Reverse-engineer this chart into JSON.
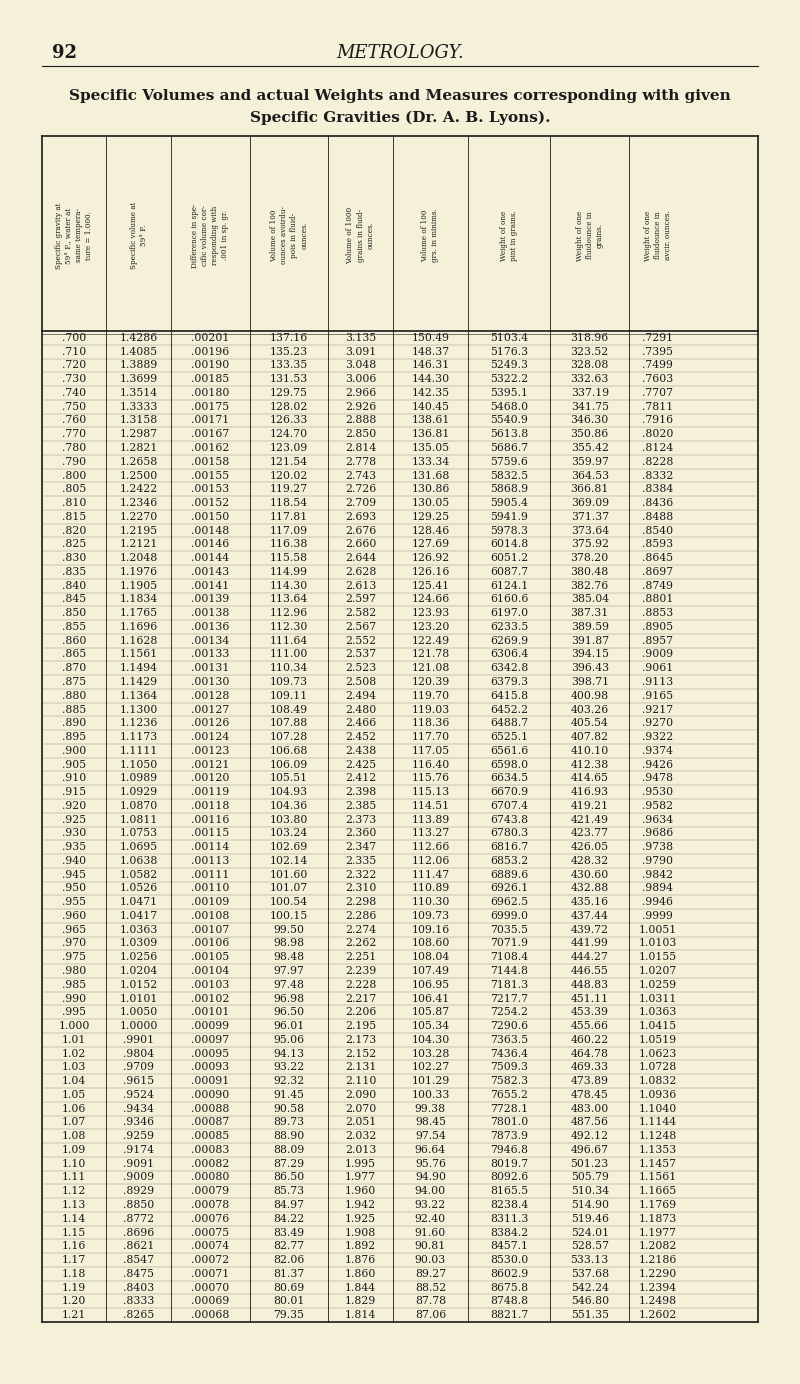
{
  "page_number": "92",
  "page_title": "METROLOGY.",
  "table_title": "Specific Volumes and actual Weights and Measures corresponding with given",
  "table_subtitle": "Specific Gravities (Dr. A. B. Lyons).",
  "col_headers": [
    "Specific gravity at\n59° F., water at\nsame tempera-\nture = 1.000.",
    "Specific volume at\n59° F.",
    "Difference in spe-\ncific volume cor-\nresponding with\n.001 in sp. gr.",
    "Volume of 100\nounces avoirdu-\npois in fluid-\nounces.",
    "Volume of 1000\ngrains in fluid-\nounces.",
    "Volume of 100\ngrs. in minims.",
    "Weight of one\npint in grains.",
    "Weight of one\nfluidounce in\ngrains.",
    "Weight of one\nfluidounce in\navcir. ounces."
  ],
  "rows": [
    [
      ".700",
      "1.4286",
      ".00201",
      "137.16",
      "3.135",
      "150.49",
      "5103.4",
      "318.96",
      ".7291"
    ],
    [
      ".710",
      "1.4085",
      ".00196",
      "135.23",
      "3.091",
      "148.37",
      "5176.3",
      "323.52",
      ".7395"
    ],
    [
      ".720",
      "1.3889",
      ".00190",
      "133.35",
      "3.048",
      "146.31",
      "5249.3",
      "328.08",
      ".7499"
    ],
    [
      ".730",
      "1.3699",
      ".00185",
      "131.53",
      "3.006",
      "144.30",
      "5322.2",
      "332.63",
      ".7603"
    ],
    [
      ".740",
      "1.3514",
      ".00180",
      "129.75",
      "2.966",
      "142.35",
      "5395.1",
      "337.19",
      ".7707"
    ],
    [
      ".750",
      "1.3333",
      ".00175",
      "128.02",
      "2.926",
      "140.45",
      "5468.0",
      "341.75",
      ".7811"
    ],
    [
      ".760",
      "1.3158",
      ".00171",
      "126.33",
      "2.888",
      "138.61",
      "5540.9",
      "346.30",
      ".7916"
    ],
    [
      ".770",
      "1.2987",
      ".00167",
      "124.70",
      "2.850",
      "136.81",
      "5613.8",
      "350.86",
      ".8020"
    ],
    [
      ".780",
      "1.2821",
      ".00162",
      "123.09",
      "2.814",
      "135.05",
      "5686.7",
      "355.42",
      ".8124"
    ],
    [
      ".790",
      "1.2658",
      ".00158",
      "121.54",
      "2.778",
      "133.34",
      "5759.6",
      "359.97",
      ".8228"
    ],
    [
      ".800",
      "1.2500",
      ".00155",
      "120.02",
      "2.743",
      "131.68",
      "5832.5",
      "364.53",
      ".8332"
    ],
    [
      ".805",
      "1.2422",
      ".00153",
      "119.27",
      "2.726",
      "130.86",
      "5868.9",
      "366.81",
      ".8384"
    ],
    [
      ".810",
      "1.2346",
      ".00152",
      "118.54",
      "2.709",
      "130.05",
      "5905.4",
      "369.09",
      ".8436"
    ],
    [
      ".815",
      "1.2270",
      ".00150",
      "117.81",
      "2.693",
      "129.25",
      "5941.9",
      "371.37",
      ".8488"
    ],
    [
      ".820",
      "1.2195",
      ".00148",
      "117.09",
      "2.676",
      "128.46",
      "5978.3",
      "373.64",
      ".8540"
    ],
    [
      ".825",
      "1.2121",
      ".00146",
      "116.38",
      "2.660",
      "127.69",
      "6014.8",
      "375.92",
      ".8593"
    ],
    [
      ".830",
      "1.2048",
      ".00144",
      "115.58",
      "2.644",
      "126.92",
      "6051.2",
      "378.20",
      ".8645"
    ],
    [
      ".835",
      "1.1976",
      ".00143",
      "114.99",
      "2.628",
      "126.16",
      "6087.7",
      "380.48",
      ".8697"
    ],
    [
      ".840",
      "1.1905",
      ".00141",
      "114.30",
      "2.613",
      "125.41",
      "6124.1",
      "382.76",
      ".8749"
    ],
    [
      ".845",
      "1.1834",
      ".00139",
      "113.64",
      "2.597",
      "124.66",
      "6160.6",
      "385.04",
      ".8801"
    ],
    [
      ".850",
      "1.1765",
      ".00138",
      "112.96",
      "2.582",
      "123.93",
      "6197.0",
      "387.31",
      ".8853"
    ],
    [
      ".855",
      "1.1696",
      ".00136",
      "112.30",
      "2.567",
      "123.20",
      "6233.5",
      "389.59",
      ".8905"
    ],
    [
      ".860",
      "1.1628",
      ".00134",
      "111.64",
      "2.552",
      "122.49",
      "6269.9",
      "391.87",
      ".8957"
    ],
    [
      ".865",
      "1.1561",
      ".00133",
      "111.00",
      "2.537",
      "121.78",
      "6306.4",
      "394.15",
      ".9009"
    ],
    [
      ".870",
      "1.1494",
      ".00131",
      "110.34",
      "2.523",
      "121.08",
      "6342.8",
      "396.43",
      ".9061"
    ],
    [
      ".875",
      "1.1429",
      ".00130",
      "109.73",
      "2.508",
      "120.39",
      "6379.3",
      "398.71",
      ".9113"
    ],
    [
      ".880",
      "1.1364",
      ".00128",
      "109.11",
      "2.494",
      "119.70",
      "6415.8",
      "400.98",
      ".9165"
    ],
    [
      ".885",
      "1.1300",
      ".00127",
      "108.49",
      "2.480",
      "119.03",
      "6452.2",
      "403.26",
      ".9217"
    ],
    [
      ".890",
      "1.1236",
      ".00126",
      "107.88",
      "2.466",
      "118.36",
      "6488.7",
      "405.54",
      ".9270"
    ],
    [
      ".895",
      "1.1173",
      ".00124",
      "107.28",
      "2.452",
      "117.70",
      "6525.1",
      "407.82",
      ".9322"
    ],
    [
      ".900",
      "1.1111",
      ".00123",
      "106.68",
      "2.438",
      "117.05",
      "6561.6",
      "410.10",
      ".9374"
    ],
    [
      ".905",
      "1.1050",
      ".00121",
      "106.09",
      "2.425",
      "116.40",
      "6598.0",
      "412.38",
      ".9426"
    ],
    [
      ".910",
      "1.0989",
      ".00120",
      "105.51",
      "2.412",
      "115.76",
      "6634.5",
      "414.65",
      ".9478"
    ],
    [
      ".915",
      "1.0929",
      ".00119",
      "104.93",
      "2.398",
      "115.13",
      "6670.9",
      "416.93",
      ".9530"
    ],
    [
      ".920",
      "1.0870",
      ".00118",
      "104.36",
      "2.385",
      "114.51",
      "6707.4",
      "419.21",
      ".9582"
    ],
    [
      ".925",
      "1.0811",
      ".00116",
      "103.80",
      "2.373",
      "113.89",
      "6743.8",
      "421.49",
      ".9634"
    ],
    [
      ".930",
      "1.0753",
      ".00115",
      "103.24",
      "2.360",
      "113.27",
      "6780.3",
      "423.77",
      ".9686"
    ],
    [
      ".935",
      "1.0695",
      ".00114",
      "102.69",
      "2.347",
      "112.66",
      "6816.7",
      "426.05",
      ".9738"
    ],
    [
      ".940",
      "1.0638",
      ".00113",
      "102.14",
      "2.335",
      "112.06",
      "6853.2",
      "428.32",
      ".9790"
    ],
    [
      ".945",
      "1.0582",
      ".00111",
      "101.60",
      "2.322",
      "111.47",
      "6889.6",
      "430.60",
      ".9842"
    ],
    [
      ".950",
      "1.0526",
      ".00110",
      "101.07",
      "2.310",
      "110.89",
      "6926.1",
      "432.88",
      ".9894"
    ],
    [
      ".955",
      "1.0471",
      ".00109",
      "100.54",
      "2.298",
      "110.30",
      "6962.5",
      "435.16",
      ".9946"
    ],
    [
      ".960",
      "1.0417",
      ".00108",
      "100.15",
      "2.286",
      "109.73",
      "6999.0",
      "437.44",
      ".9999"
    ],
    [
      ".965",
      "1.0363",
      ".00107",
      "99.50",
      "2.274",
      "109.16",
      "7035.5",
      "439.72",
      "1.0051"
    ],
    [
      ".970",
      "1.0309",
      ".00106",
      "98.98",
      "2.262",
      "108.60",
      "7071.9",
      "441.99",
      "1.0103"
    ],
    [
      ".975",
      "1.0256",
      ".00105",
      "98.48",
      "2.251",
      "108.04",
      "7108.4",
      "444.27",
      "1.0155"
    ],
    [
      ".980",
      "1.0204",
      ".00104",
      "97.97",
      "2.239",
      "107.49",
      "7144.8",
      "446.55",
      "1.0207"
    ],
    [
      ".985",
      "1.0152",
      ".00103",
      "97.48",
      "2.228",
      "106.95",
      "7181.3",
      "448.83",
      "1.0259"
    ],
    [
      ".990",
      "1.0101",
      ".00102",
      "96.98",
      "2.217",
      "106.41",
      "7217.7",
      "451.11",
      "1.0311"
    ],
    [
      ".995",
      "1.0050",
      ".00101",
      "96.50",
      "2.206",
      "105.87",
      "7254.2",
      "453.39",
      "1.0363"
    ],
    [
      "1.000",
      "1.0000",
      ".00099",
      "96.01",
      "2.195",
      "105.34",
      "7290.6",
      "455.66",
      "1.0415"
    ],
    [
      "1.01",
      ".9901",
      ".00097",
      "95.06",
      "2.173",
      "104.30",
      "7363.5",
      "460.22",
      "1.0519"
    ],
    [
      "1.02",
      ".9804",
      ".00095",
      "94.13",
      "2.152",
      "103.28",
      "7436.4",
      "464.78",
      "1.0623"
    ],
    [
      "1.03",
      ".9709",
      ".00093",
      "93.22",
      "2.131",
      "102.27",
      "7509.3",
      "469.33",
      "1.0728"
    ],
    [
      "1.04",
      ".9615",
      ".00091",
      "92.32",
      "2.110",
      "101.29",
      "7582.3",
      "473.89",
      "1.0832"
    ],
    [
      "1.05",
      ".9524",
      ".00090",
      "91.45",
      "2.090",
      "100.33",
      "7655.2",
      "478.45",
      "1.0936"
    ],
    [
      "1.06",
      ".9434",
      ".00088",
      "90.58",
      "2.070",
      "99.38",
      "7728.1",
      "483.00",
      "1.1040"
    ],
    [
      "1.07",
      ".9346",
      ".00087",
      "89.73",
      "2.051",
      "98.45",
      "7801.0",
      "487.56",
      "1.1144"
    ],
    [
      "1.08",
      ".9259",
      ".00085",
      "88.90",
      "2.032",
      "97.54",
      "7873.9",
      "492.12",
      "1.1248"
    ],
    [
      "1.09",
      ".9174",
      ".00083",
      "88.09",
      "2.013",
      "96.64",
      "7946.8",
      "496.67",
      "1.1353"
    ],
    [
      "1.10",
      ".9091",
      ".00082",
      "87.29",
      "1.995",
      "95.76",
      "8019.7",
      "501.23",
      "1.1457"
    ],
    [
      "1.11",
      ".9009",
      ".00080",
      "86.50",
      "1.977",
      "94.90",
      "8092.6",
      "505.79",
      "1.1561"
    ],
    [
      "1.12",
      ".8929",
      ".00079",
      "85.73",
      "1.960",
      "94.00",
      "8165.5",
      "510.34",
      "1.1665"
    ],
    [
      "1.13",
      ".8850",
      ".00078",
      "84.97",
      "1.942",
      "93.22",
      "8238.4",
      "514.90",
      "1.1769"
    ],
    [
      "1.14",
      ".8772",
      ".00076",
      "84.22",
      "1.925",
      "92.40",
      "8311.3",
      "519.46",
      "1.1873"
    ],
    [
      "1.15",
      ".8696",
      ".00075",
      "83.49",
      "1.908",
      "91.60",
      "8384.2",
      "524.01",
      "1.1977"
    ],
    [
      "1.16",
      ".8621",
      ".00074",
      "82.77",
      "1.892",
      "90.81",
      "8457.1",
      "528.57",
      "1.2082"
    ],
    [
      "1.17",
      ".8547",
      ".00072",
      "82.06",
      "1.876",
      "90.03",
      "8530.0",
      "533.13",
      "1.2186"
    ],
    [
      "1.18",
      ".8475",
      ".00071",
      "81.37",
      "1.860",
      "89.27",
      "8602.9",
      "537.68",
      "1.2290"
    ],
    [
      "1.19",
      ".8403",
      ".00070",
      "80.69",
      "1.844",
      "88.52",
      "8675.8",
      "542.24",
      "1.2394"
    ],
    [
      "1.20",
      ".8333",
      ".00069",
      "80.01",
      "1.829",
      "87.78",
      "8748.8",
      "546.80",
      "1.2498"
    ],
    [
      "1.21",
      ".8265",
      ".00068",
      "79.35",
      "1.814",
      "87.06",
      "8821.7",
      "551.35",
      "1.2602"
    ]
  ],
  "bg_color": "#f5f0d8",
  "text_color": "#1a1a1a"
}
